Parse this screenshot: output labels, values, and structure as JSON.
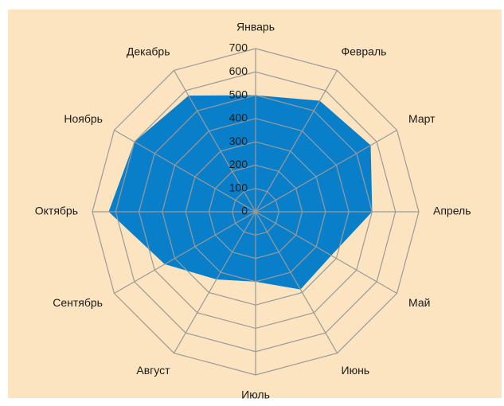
{
  "chart_data": {
    "type": "radar",
    "categories": [
      "Январь",
      "Февраль",
      "Март",
      "Апрель",
      "Май",
      "Июнь",
      "Июль",
      "Август",
      "Сентябрь",
      "Октябрь",
      "Ноябрь",
      "Декабрь"
    ],
    "values": [
      500,
      550,
      570,
      500,
      375,
      385,
      300,
      335,
      450,
      630,
      600,
      575
    ],
    "color": "#0a7fc9",
    "ylim": [
      0,
      700
    ],
    "yticks": [
      0,
      100,
      200,
      300,
      400,
      500,
      600,
      700
    ],
    "grid": true
  }
}
